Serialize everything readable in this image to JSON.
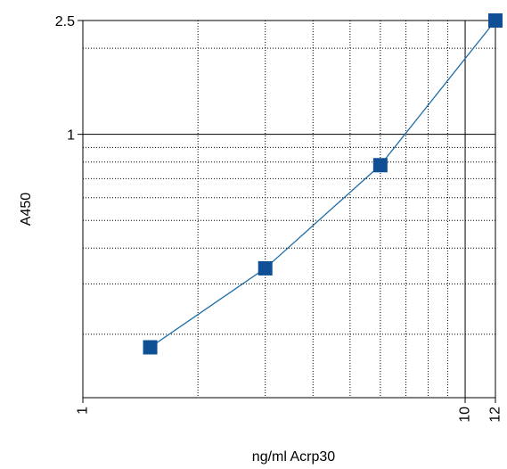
{
  "chart_data": {
    "type": "line",
    "title": "",
    "xlabel": "ng/ml Acrp30",
    "ylabel": "A450",
    "x_scale": "log",
    "y_scale": "log",
    "xlim": [
      1,
      12
    ],
    "ylim": [
      0.12,
      2.5
    ],
    "x_tick_labels": [
      {
        "value": 1,
        "label": "1"
      },
      {
        "value": 10,
        "label": "10"
      },
      {
        "value": 12,
        "label": "12"
      }
    ],
    "y_tick_labels": [
      {
        "value": 1,
        "label": "1"
      },
      {
        "value": 2.5,
        "label": "2.5"
      }
    ],
    "grid": true,
    "legend": "none",
    "series": [
      {
        "x": [
          1.5,
          3,
          6,
          12
        ],
        "y": [
          0.18,
          0.34,
          0.78,
          2.5
        ],
        "marker": "square"
      }
    ],
    "colors": {
      "line": "#1f6ea8",
      "marker": "#0f4f96",
      "grid_major": "#000000",
      "grid_minor": "#000000"
    }
  }
}
